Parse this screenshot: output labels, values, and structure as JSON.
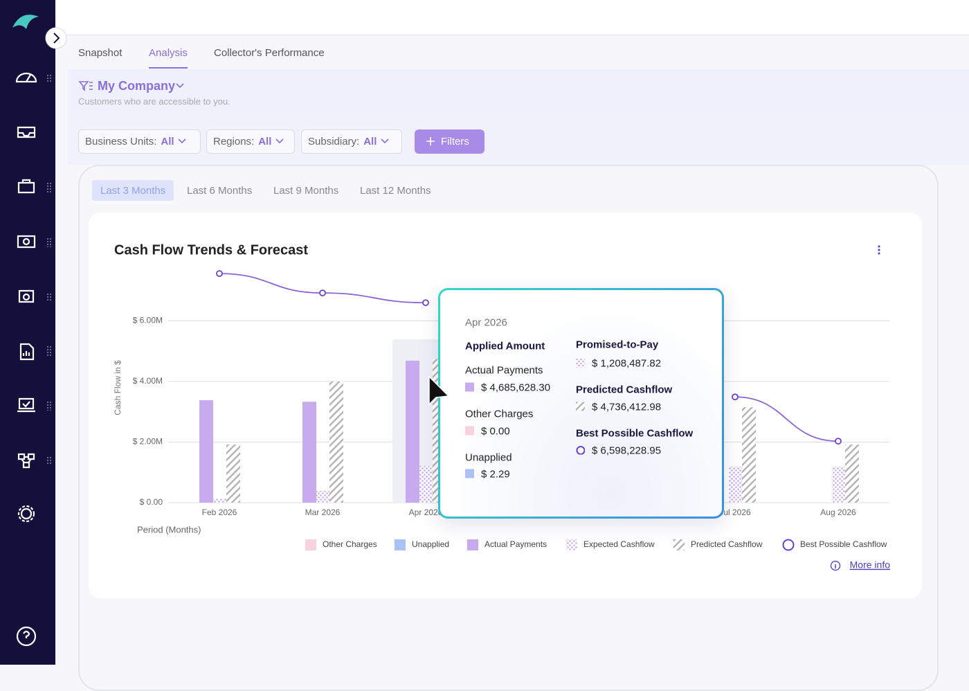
{
  "tabs": [
    "Snapshot",
    "Analysis",
    "Collector's Performance"
  ],
  "company": {
    "name": "My Company",
    "note": "Customers who are accessible to you."
  },
  "filters": [
    {
      "label": "Business Units:",
      "value": "All"
    },
    {
      "label": "Regions:",
      "value": "All"
    },
    {
      "label": "Subsidiary:",
      "value": "All"
    }
  ],
  "filters_button": "Filters",
  "periods": [
    "Last 3 Months",
    "Last 6 Months",
    "Last 9 Months",
    "Last 12 Months"
  ],
  "more_info": "More info",
  "tooltip": {
    "applied_heading": "Applied Amount",
    "expected_heading": "Promised-to-Pay"
  },
  "chart_data": {
    "type": "bar",
    "title": "Cash Flow Trends & Forecast",
    "y_label": "Cash Flow in $",
    "x_label": "Period (Months)",
    "categories": [
      "Feb 2026",
      "Mar 2026",
      "Apr 2026",
      null,
      null,
      "Jul 2026",
      "Aug 2026"
    ],
    "ylim": [
      0,
      7700000
    ],
    "yticks": [
      {
        "value": 0,
        "label": "$ 0.00"
      },
      {
        "value": 2000000,
        "label": "$ 2.00M"
      },
      {
        "value": 4000000,
        "label": "$ 4.00M"
      },
      {
        "value": 6000000,
        "label": "$ 6.00M"
      }
    ],
    "grid": true,
    "legend": "bottom-right",
    "series": [
      {
        "name": "Other Charges",
        "color": "#f8d3df",
        "values": [
          0,
          0,
          0,
          null,
          null,
          null,
          null
        ],
        "value_labels": [
          null,
          null,
          "$ 0.00",
          null,
          null,
          null,
          null
        ]
      },
      {
        "name": "Unapplied",
        "color": "#aac1f6",
        "values": [
          0,
          0,
          2.29,
          null,
          null,
          null,
          null
        ],
        "value_labels": [
          null,
          null,
          "$ 2.29",
          null,
          null,
          null,
          null
        ]
      },
      {
        "name": "Actual Payments",
        "color": "#c8aaee",
        "values": [
          3380000,
          3330000,
          4685628.3,
          null,
          null,
          null,
          null
        ],
        "value_labels": [
          null,
          null,
          "$ 4,685,628.30",
          null,
          null,
          null,
          null
        ]
      },
      {
        "name": "Expected Cashflow",
        "color": "#c8aaee",
        "pattern": "dots",
        "values": [
          140000,
          390000,
          1208487.82,
          null,
          null,
          1190000,
          1190000
        ],
        "value_labels": [
          null,
          null,
          "$ 1,208,487.82",
          null,
          null,
          null,
          null
        ]
      },
      {
        "name": "Predicted Cashflow",
        "color": "#b5b5b5",
        "pattern": "hatch",
        "values": [
          1920000,
          4000000,
          4736412.98,
          null,
          null,
          3150000,
          1920000
        ],
        "value_labels": [
          null,
          null,
          "$ 4,736,412.98",
          null,
          null,
          null,
          null
        ]
      },
      {
        "name": "Best Possible Cashflow",
        "color": "#8d63d9",
        "type": "line",
        "values": [
          7560000,
          6920000,
          6598228.95,
          null,
          null,
          3490000,
          2030000
        ],
        "value_labels": [
          null,
          null,
          "$ 6,598,228.95",
          null,
          null,
          null,
          null
        ]
      }
    ]
  }
}
